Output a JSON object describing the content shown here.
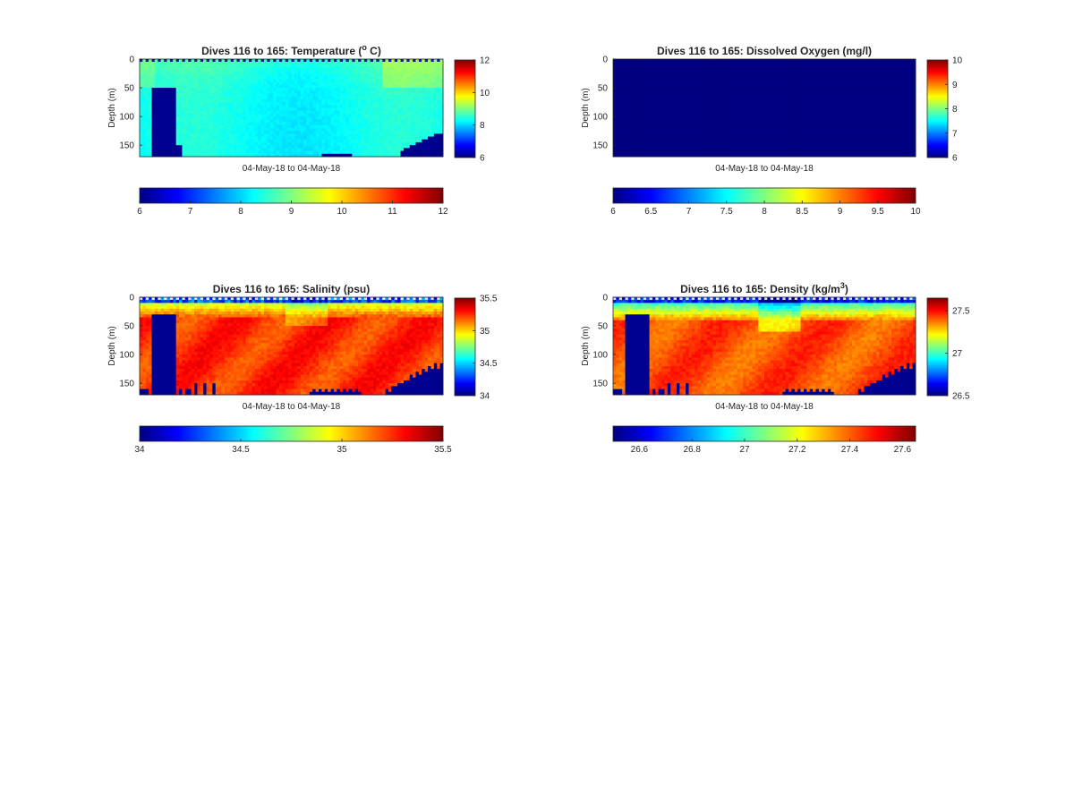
{
  "chart_data": [
    {
      "type": "heatmap",
      "title": "Dives 116 to 165: Temperature (° C)",
      "title_parts": {
        "pre": "Dives 116 to 165: Temperature (",
        "sup": "o",
        "post": " C)"
      },
      "xlabel": "04-May-18 to 04-May-18",
      "ylabel": "Depth (m)",
      "ylim": [
        0,
        170
      ],
      "yticks": [
        0,
        50,
        100,
        150
      ],
      "yticklabels": [
        "0",
        "50",
        "100",
        "150"
      ],
      "clim": [
        6,
        12
      ],
      "colorbar_right_ticks": [
        "6",
        "8",
        "10",
        "12"
      ],
      "colorbar_bottom_ticks": [
        "6",
        "7",
        "8",
        "9",
        "10",
        "11",
        "12"
      ],
      "colormap": "jet",
      "field": "temperature"
    },
    {
      "type": "heatmap",
      "title": "Dives 116 to 165: Dissolved Oxygen (mg/l)",
      "title_parts": {
        "pre": "Dives 116 to 165: Dissolved Oxygen (mg/l)",
        "sup": "",
        "post": ""
      },
      "xlabel": "04-May-18 to 04-May-18",
      "ylabel": "Depth (m)",
      "ylim": [
        0,
        170
      ],
      "yticks": [
        0,
        50,
        100,
        150
      ],
      "yticklabels": [
        "0",
        "50",
        "100",
        "150"
      ],
      "clim": [
        6,
        10
      ],
      "colorbar_right_ticks": [
        "6",
        "7",
        "8",
        "9",
        "10"
      ],
      "colorbar_bottom_ticks": [
        "6",
        "6.5",
        "7",
        "7.5",
        "8",
        "8.5",
        "9",
        "9.5",
        "10"
      ],
      "colormap": "jet",
      "field": "oxygen"
    },
    {
      "type": "heatmap",
      "title": "Dives 116 to 165: Salinity (psu)",
      "title_parts": {
        "pre": "Dives 116 to 165: Salinity (psu)",
        "sup": "",
        "post": ""
      },
      "xlabel": "04-May-18 to 04-May-18",
      "ylabel": "Depth (m)",
      "ylim": [
        0,
        170
      ],
      "yticks": [
        0,
        50,
        100,
        150
      ],
      "yticklabels": [
        "0",
        "50",
        "100",
        "150"
      ],
      "clim": [
        34,
        35.5
      ],
      "colorbar_right_ticks": [
        "34",
        "34.5",
        "35",
        "35.5"
      ],
      "colorbar_bottom_ticks": [
        "34",
        "34.5",
        "35",
        "35.5"
      ],
      "colormap": "jet",
      "field": "salinity"
    },
    {
      "type": "heatmap",
      "title": "Dives 116 to 165: Density (kg/m³)",
      "title_parts": {
        "pre": "Dives 116 to 165: Density (kg/m",
        "sup": "3",
        "post": ")"
      },
      "xlabel": "04-May-18 to 04-May-18",
      "ylabel": "Depth (m)",
      "ylim": [
        0,
        170
      ],
      "yticks": [
        0,
        50,
        100,
        150
      ],
      "yticklabels": [
        "0",
        "50",
        "100",
        "150"
      ],
      "clim": [
        26.5,
        27.65
      ],
      "colorbar_right_ticks": [
        "26.5",
        "27",
        "27.5"
      ],
      "colorbar_right_values": [
        26.5,
        27,
        27.5
      ],
      "colorbar_bottom_ticks": [
        "26.6",
        "26.8",
        "27",
        "27.2",
        "27.4",
        "27.6"
      ],
      "colorbar_bottom_values": [
        26.6,
        26.8,
        27,
        27.2,
        27.4,
        27.6
      ],
      "colormap": "jet",
      "field": "density"
    }
  ]
}
